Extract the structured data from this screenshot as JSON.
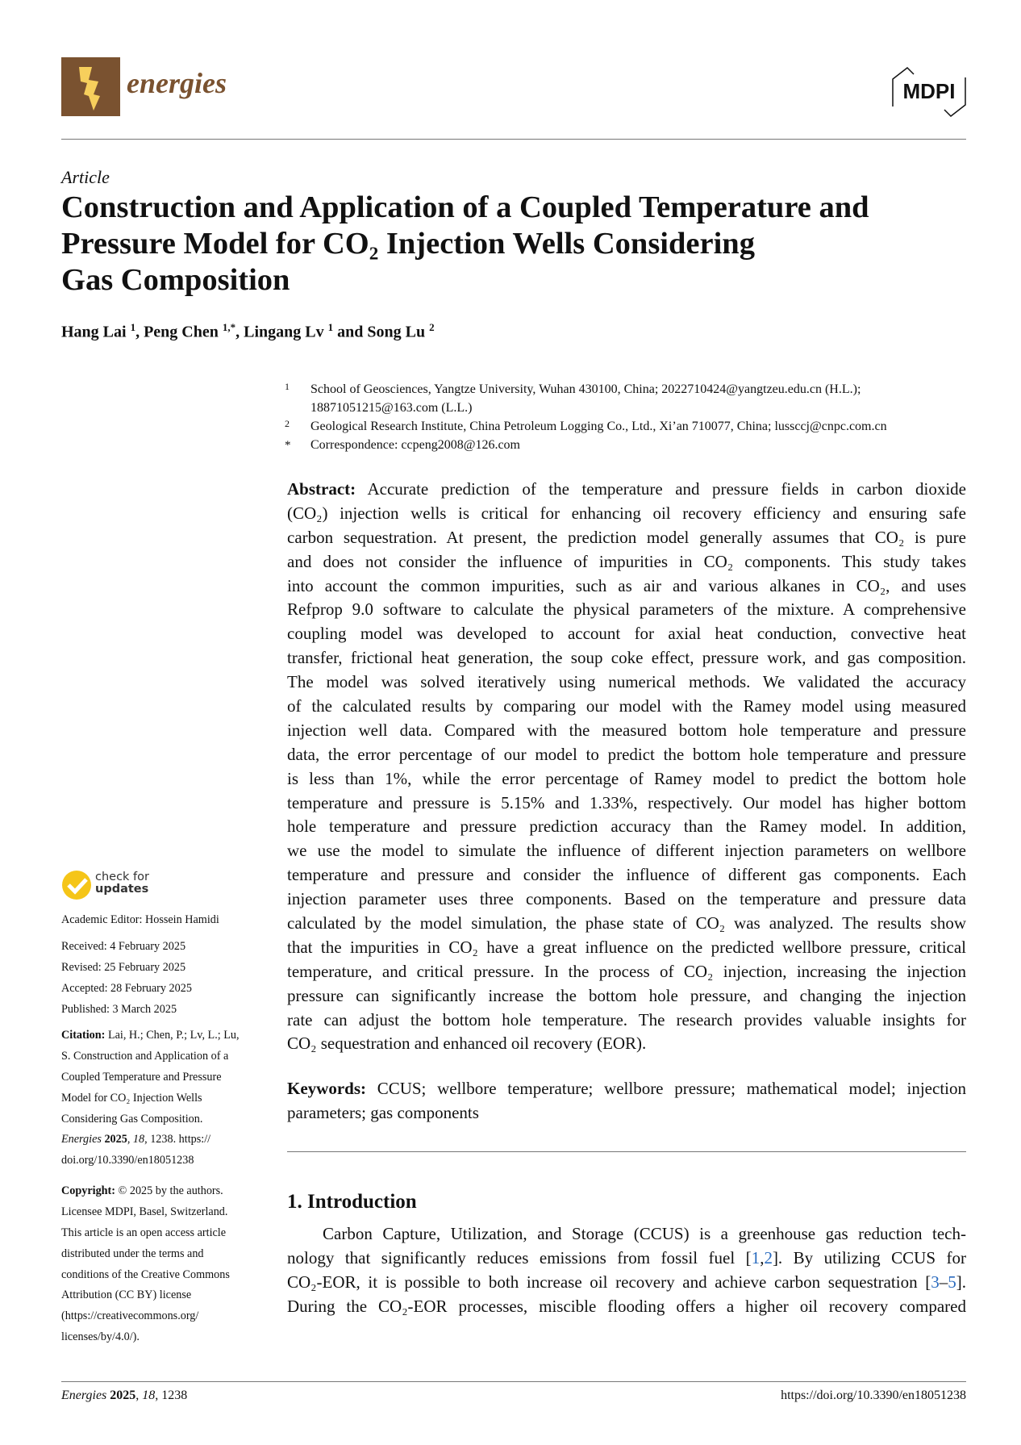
{
  "header": {
    "journal": "energies",
    "publisher": "MDPI"
  },
  "article_type": "Article",
  "title_lines": [
    "Construction and Application of a Coupled Temperature and",
    "Pressure Model for CO₂ Injection Wells Considering",
    "Gas Composition"
  ],
  "authors": [
    {
      "name": "Hang Lai",
      "aff": "1"
    },
    {
      "name": "Peng Chen",
      "aff": "1,*"
    },
    {
      "name": "Lingang Lv",
      "aff": "1"
    },
    {
      "name": "Song Lu",
      "aff": "2"
    }
  ],
  "author_sep": [
    ", ",
    ", ",
    " and "
  ],
  "affiliations": [
    {
      "n": "1",
      "lines": [
        "School of Geosciences, Yangtze University, Wuhan 430100, China; 2022710424@yangtzeu.edu.cn (H.L.);",
        "18871051215@163.com (L.L.)"
      ]
    },
    {
      "n": "2",
      "lines": [
        "Geological Research Institute, China Petroleum Logging Co., Ltd., Xi’an 710077, China; lussccj@cnpc.com.cn"
      ]
    },
    {
      "n": "*",
      "lines": [
        "Correspondence: ccpeng2008@126.com"
      ]
    }
  ],
  "abstract": {
    "label": "Abstract:",
    "lines": [
      " Accurate prediction of the temperature and pressure fields in carbon dioxide",
      "(CO₂) injection wells is critical for enhancing oil recovery efficiency and ensuring safe",
      "carbon sequestration. At present, the prediction model generally assumes that CO₂ is pure",
      "and does not consider the influence of impurities in CO₂ components. This study takes",
      "into account the common impurities, such as air and various alkanes in CO₂, and uses",
      "Refprop 9.0 software to calculate the physical parameters of the mixture. A comprehensive",
      "coupling model was developed to account for axial heat conduction, convective heat",
      "transfer, frictional heat generation, the soup coke effect, pressure work, and gas composition.",
      "The model was solved iteratively using numerical methods. We validated the accuracy",
      "of the calculated results by comparing our model with the Ramey model using measured",
      "injection well data. Compared with the measured bottom hole temperature and pressure",
      "data, the error percentage of our model to predict the bottom hole temperature and pressure",
      "is less than 1%, while the error percentage of Ramey model to predict the bottom hole",
      "temperature and pressure is 5.15% and 1.33%, respectively. Our model has higher bottom",
      "hole temperature and pressure prediction accuracy than the Ramey model. In addition,",
      "we use the model to simulate the influence of different injection parameters on wellbore",
      "temperature and pressure and consider the influence of different gas components. Each",
      "injection parameter uses three components. Based on the temperature and pressure data",
      "calculated by the model simulation, the phase state of CO₂ was analyzed. The results show",
      "that the impurities in CO₂ have a great influence on the predicted wellbore pressure, critical",
      "temperature, and critical pressure. In the process of CO₂ injection, increasing the injection",
      "pressure can significantly increase the bottom hole pressure, and changing the injection",
      "rate can adjust the bottom hole temperature. The research provides valuable insights for",
      "CO₂ sequestration and enhanced oil recovery (EOR)."
    ]
  },
  "keywords": {
    "label": "Keywords:",
    "lines": [
      " CCUS; wellbore temperature; wellbore pressure; mathematical model; injection",
      "parameters; gas components"
    ]
  },
  "intro": {
    "heading": "1. Introduction",
    "l1": "Carbon Capture, Utilization, and Storage (CCUS) is a greenhouse gas reduction tech-",
    "l2a": "nology that significantly reduces emissions from fossil fuel [",
    "c1": "1",
    "c2": "2",
    "l2b": "]. By utilizing CCUS for",
    "l3a": "CO₂-EOR, it is possible to both increase oil recovery and achieve carbon sequestration [",
    "c3": "3",
    "c5": "5",
    "l3b": "].",
    "l4": "During the CO₂-EOR processes, miscible flooding offers a higher oil recovery compared"
  },
  "sidebar": {
    "check_updates": [
      "check for",
      "updates"
    ],
    "editor": "Academic Editor: Hossein Hamidi",
    "dates": [
      "Received: 4 February 2025",
      "Revised: 25 February 2025",
      "Accepted: 28 February 2025",
      "Published: 3 March 2025"
    ],
    "citation_label": "Citation:",
    "citation_lines": [
      "  Lai, H.; Chen, P.; Lv, L.; Lu,",
      "S. Construction and Application of a",
      "Coupled Temperature and Pressure",
      "Model for CO₂ Injection Wells",
      "Considering Gas Composition."
    ],
    "citation_journal": "Energies",
    "citation_year": "2025",
    "citation_vol": "18",
    "citation_rest": ", 1238.  https://",
    "citation_doi": "doi.org/10.3390/en18051238",
    "copyright_label": "Copyright:",
    "copyright_lines": [
      " © 2025 by the authors.",
      "Licensee MDPI, Basel, Switzerland.",
      "This article is an open access article",
      "distributed under the terms and",
      "conditions of the Creative Commons",
      "Attribution (CC BY) license",
      "(https://creativecommons.org/",
      "licenses/by/4.0/)."
    ]
  },
  "footer": {
    "journal": "Energies",
    "year": "2025",
    "vol": "18",
    "page": "1238",
    "doi": "https://doi.org/10.3390/en18051238"
  },
  "colors": {
    "brand": "#7a5230",
    "link": "#2a6bbf",
    "check": "#f5c518"
  }
}
